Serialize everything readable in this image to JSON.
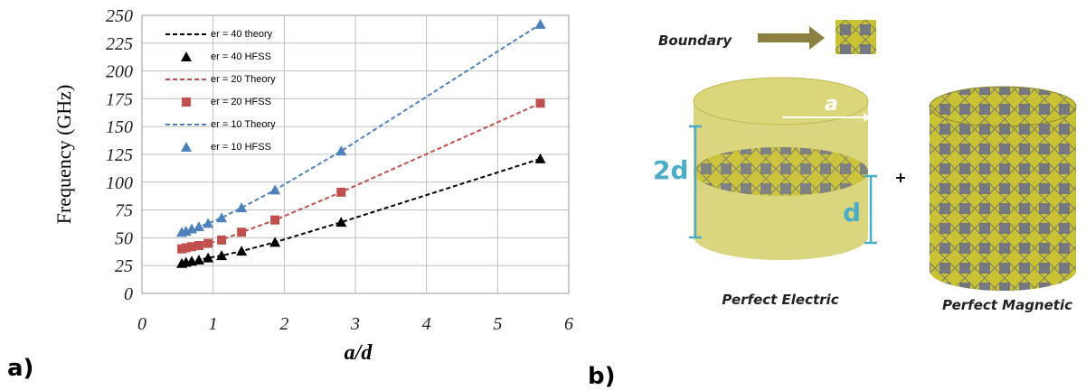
{
  "chart_data": {
    "type": "line_scatter",
    "xlabel": "a/d",
    "ylabel": "Frequency (GHz)",
    "x": [
      0.56,
      0.62,
      0.7,
      0.8,
      0.93,
      1.12,
      1.4,
      1.87,
      2.8,
      5.6
    ],
    "series": [
      {
        "name": "er = 40 theory",
        "color": "#000000",
        "line": "dashed",
        "values": [
          27,
          28,
          29,
          30,
          32,
          34,
          38,
          46,
          64,
          121
        ]
      },
      {
        "name": "er = 40 HFSS",
        "color": "#000000",
        "marker": "triangle",
        "values": [
          27,
          28,
          29,
          30,
          32,
          34,
          38,
          46,
          64,
          121
        ]
      },
      {
        "name": "er = 20 Theory",
        "color": "#c0504d",
        "line": "dashed",
        "values": [
          40,
          41,
          42,
          43,
          45,
          48,
          55,
          66,
          91,
          171
        ]
      },
      {
        "name": "er = 20 HFSS",
        "color": "#c0504d",
        "marker": "square",
        "values": [
          40,
          41,
          42,
          43,
          45,
          48,
          55,
          66,
          91,
          171
        ]
      },
      {
        "name": "er = 10 Theory",
        "color": "#4f81bd",
        "line": "dashed",
        "values": [
          55,
          56,
          58,
          60,
          63,
          68,
          77,
          93,
          128,
          242
        ]
      },
      {
        "name": "er = 10 HFSS",
        "color": "#4f81bd",
        "marker": "triangle",
        "values": [
          55,
          56,
          58,
          60,
          63,
          68,
          77,
          93,
          128,
          242
        ]
      }
    ],
    "xlim": [
      0,
      6
    ],
    "xticks": [
      0,
      1,
      2,
      3,
      4,
      5,
      6
    ],
    "ylim": [
      0,
      250
    ],
    "yticks": [
      0,
      25,
      50,
      75,
      100,
      125,
      150,
      175,
      200,
      225,
      250
    ],
    "grid": true,
    "legend": "upper-left"
  },
  "panel_labels": [
    "a)",
    "b)"
  ],
  "diagram": {
    "boundary": "Boundary",
    "radius": "a",
    "height": "2d",
    "half_height": "d",
    "plus": "+",
    "left_caption": "Perfect Electric",
    "right_caption": "Perfect Magnetic"
  }
}
